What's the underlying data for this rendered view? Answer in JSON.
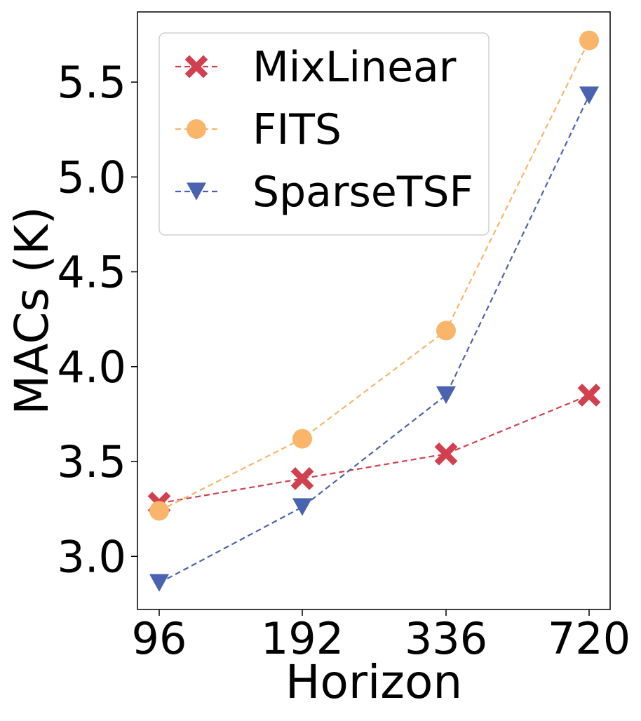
{
  "chart_data": {
    "type": "line",
    "title": "",
    "xlabel": "Horizon",
    "ylabel": "MACs (K)",
    "categories": [
      "96",
      "192",
      "336",
      "720"
    ],
    "ylim": [
      2.72,
      5.87
    ],
    "yticks": [
      "3.0",
      "3.5",
      "4.0",
      "4.5",
      "5.0",
      "5.5"
    ],
    "grid": false,
    "legend_position": "top-left",
    "series": [
      {
        "name": "MixLinear",
        "values": [
          3.28,
          3.41,
          3.54,
          3.85
        ],
        "color": "#d1404f",
        "marker": "x-filled"
      },
      {
        "name": "FITS",
        "values": [
          3.24,
          3.62,
          4.19,
          5.72
        ],
        "color": "#f9b66b",
        "marker": "circle"
      },
      {
        "name": "SparseTSF",
        "values": [
          2.86,
          3.26,
          3.85,
          5.43
        ],
        "color": "#4a63b0",
        "marker": "triangle-down"
      }
    ]
  }
}
